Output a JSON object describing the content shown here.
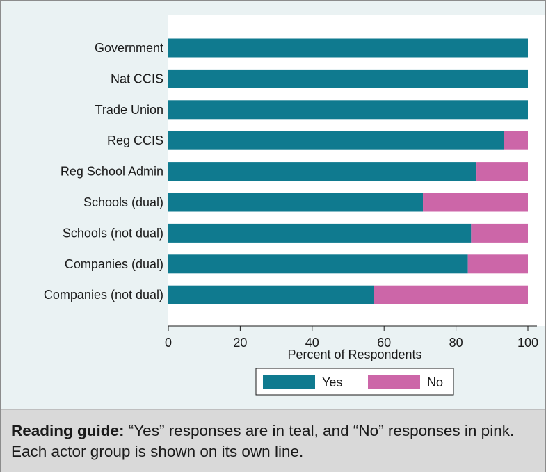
{
  "chart_data": {
    "type": "bar",
    "orientation": "horizontal",
    "stacked": true,
    "categories": [
      "Government",
      "Nat CCIS",
      "Trade Union",
      "Reg CCIS",
      "Reg School Admin",
      "Schools (dual)",
      "Schools (not dual)",
      "Companies (dual)",
      "Companies (not dual)"
    ],
    "series": [
      {
        "name": "Yes",
        "color": "#0f7a8f",
        "values": [
          100,
          100,
          100,
          93.3,
          85.7,
          70.8,
          84.2,
          83.3,
          57.1
        ]
      },
      {
        "name": "No",
        "color": "#cc66a8",
        "values": [
          0,
          0,
          0,
          6.7,
          14.3,
          29.2,
          15.8,
          16.7,
          42.9
        ]
      }
    ],
    "xlabel": "Percent of Respondents",
    "ylabel": "",
    "xlim": [
      0,
      100
    ],
    "xticks": [
      "0",
      "20",
      "40",
      "60",
      "80",
      "100"
    ],
    "grid": false,
    "legend_position": "bottom"
  },
  "guide": {
    "heading": "Reading guide:",
    "text": " “Yes” responses are in teal, and “No” responses in pink. Each actor group is shown on its own line."
  }
}
